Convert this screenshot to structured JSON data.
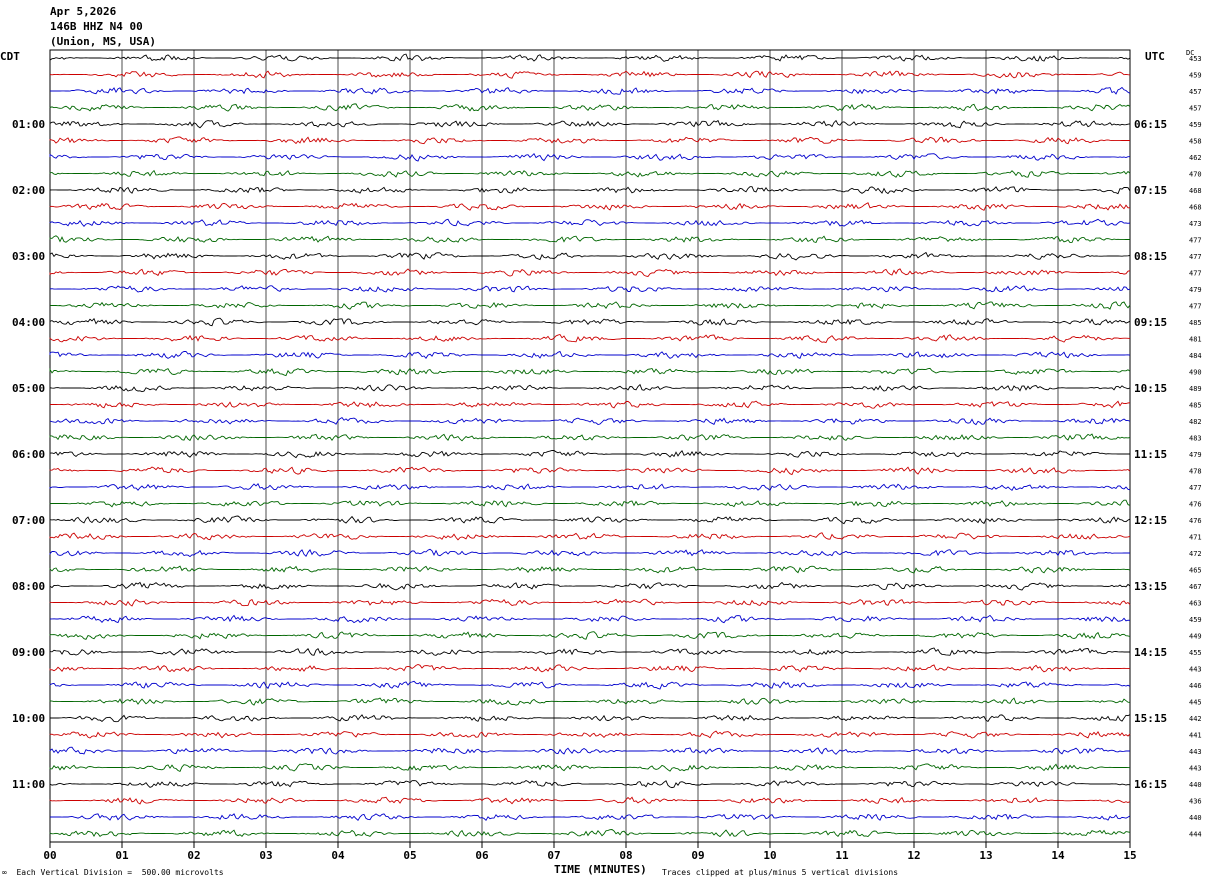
{
  "header": {
    "date": "Apr 5,2026",
    "station": "146B HHZ N4 00",
    "location": "(Union, MS, USA)"
  },
  "left_tz": "CDT",
  "right_tz": "UTC",
  "dc_label": "DC",
  "footer": {
    "scale": "Each Vertical Division =  500.00 microvolts",
    "clip": "Traces clipped at plus/minus 5 vertical divisions",
    "xlabel": "TIME (MINUTES)"
  },
  "colors": {
    "trace_cycle": [
      "#000000",
      "#cc0000",
      "#0000cc",
      "#006600"
    ],
    "grid": "#000000"
  },
  "chart_data": {
    "type": "line",
    "xlabel": "TIME (MINUTES)",
    "xlim": [
      0,
      15
    ],
    "x_ticks": [
      "00",
      "01",
      "02",
      "03",
      "04",
      "05",
      "06",
      "07",
      "08",
      "09",
      "10",
      "11",
      "12",
      "13",
      "14",
      "15"
    ],
    "left_labels": [
      "01:00",
      "02:00",
      "03:00",
      "04:00",
      "05:00",
      "06:00",
      "07:00",
      "08:00",
      "09:00",
      "10:00",
      "11:00"
    ],
    "right_labels": [
      "06:15",
      "07:15",
      "08:15",
      "09:15",
      "10:15",
      "11:15",
      "12:15",
      "13:15",
      "14:15",
      "15:15",
      "16:15"
    ],
    "trace_count": 48,
    "dc_offsets": [
      453,
      459,
      457,
      457,
      459,
      458,
      462,
      470,
      468,
      468,
      473,
      477,
      477,
      477,
      479,
      477,
      485,
      481,
      484,
      490,
      489,
      485,
      482,
      483,
      479,
      478,
      477,
      476,
      476,
      471,
      472,
      465,
      467,
      463,
      459,
      449,
      455,
      443,
      446,
      445,
      442,
      441,
      443,
      443,
      440,
      436,
      440,
      444
    ]
  }
}
